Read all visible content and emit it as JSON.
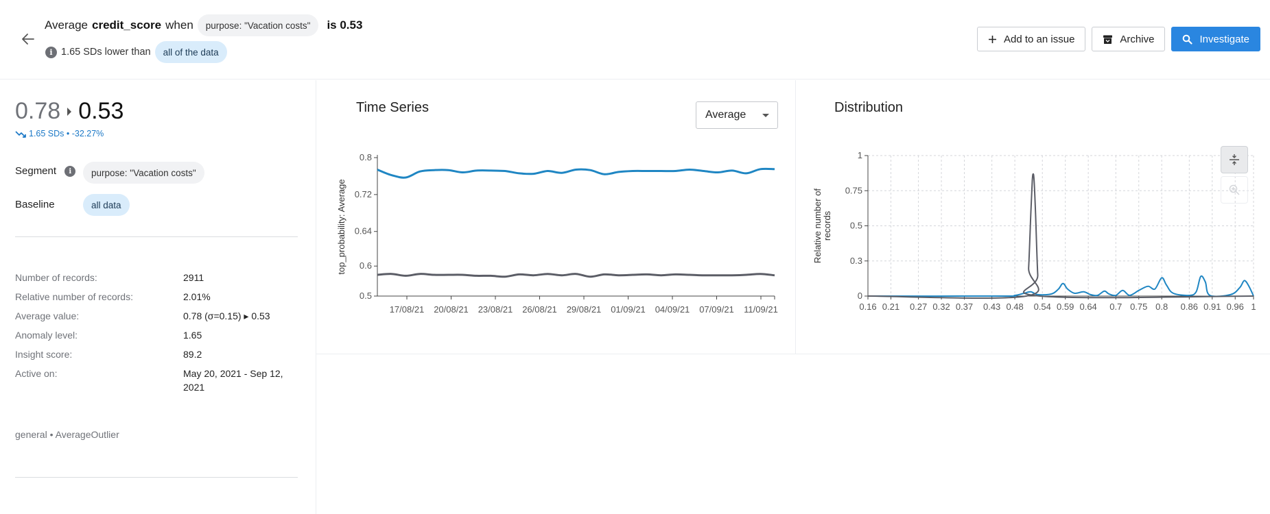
{
  "header": {
    "title_prefix": "Average",
    "metric": "credit_score",
    "title_when": "when",
    "segment_chip": "purpose: \"Vacation costs\"",
    "title_is": "is 0.53",
    "sub_text": "1.65 SDs lower than",
    "baseline_chip": "all of the data"
  },
  "actions": {
    "add_issue_label": "Add to an issue",
    "archive_label": "Archive",
    "investigate_label": "Investigate"
  },
  "summary": {
    "from_value": "0.78",
    "to_value": "0.53",
    "delta_text": "1.65 SDs • -32.27%",
    "segment_label": "Segment",
    "segment_chip": "purpose: \"Vacation costs\"",
    "baseline_label": "Baseline",
    "baseline_chip": "all data"
  },
  "stats": [
    {
      "label": "Number of records:",
      "value": "2911"
    },
    {
      "label": "Relative number of records:",
      "value": "2.01%"
    },
    {
      "label": "Average value:",
      "value": "0.78 (σ=0.15) ▸ 0.53"
    },
    {
      "label": "Anomaly level:",
      "value": "1.65"
    },
    {
      "label": "Insight score:",
      "value": "89.2"
    },
    {
      "label": "Active on:",
      "value": "May 20, 2021 - Sep 12, 2021"
    }
  ],
  "footer_text": "general • AverageOutlier",
  "time_series": {
    "title": "Time Series",
    "aggregation": "Average"
  },
  "distribution": {
    "title": "Distribution"
  },
  "colors": {
    "primary": "#2a86e0",
    "series_baseline": "#1f86c3",
    "series_segment": "#5b5d66"
  },
  "chart_data": [
    {
      "type": "line",
      "title": "Time Series",
      "ylabel": "top_probability: Average",
      "xlabel": "",
      "ylim": [
        0.5,
        0.8
      ],
      "yticks": [
        "0.5",
        "0.6",
        "0.64",
        "0.72",
        "0.8"
      ],
      "ytick_values": [
        0.5,
        0.565,
        0.64,
        0.72,
        0.8
      ],
      "xtick_labels": [
        "17/08/21",
        "20/08/21",
        "23/08/21",
        "26/08/21",
        "29/08/21",
        "01/09/21",
        "04/09/21",
        "07/09/21",
        "11/09/21"
      ],
      "x_count": 29,
      "series": [
        {
          "name": "all data",
          "color": "#1f86c3",
          "values": [
            0.774,
            0.762,
            0.757,
            0.77,
            0.773,
            0.773,
            0.768,
            0.772,
            0.772,
            0.771,
            0.766,
            0.765,
            0.771,
            0.767,
            0.774,
            0.773,
            0.764,
            0.769,
            0.771,
            0.771,
            0.771,
            0.771,
            0.774,
            0.771,
            0.768,
            0.772,
            0.766,
            0.775,
            0.775
          ]
        },
        {
          "name": "purpose: \"Vacation costs\"",
          "color": "#5b5d66",
          "values": [
            0.546,
            0.548,
            0.544,
            0.548,
            0.546,
            0.546,
            0.546,
            0.544,
            0.544,
            0.542,
            0.547,
            0.545,
            0.548,
            0.545,
            0.548,
            0.542,
            0.547,
            0.545,
            0.546,
            0.547,
            0.545,
            0.547,
            0.546,
            0.545,
            0.545,
            0.545,
            0.546,
            0.548,
            0.545
          ]
        }
      ]
    },
    {
      "type": "line",
      "title": "Distribution",
      "ylabel": "Relative number of records",
      "xlabel": "",
      "ylim": [
        0,
        1
      ],
      "yticks": [
        "0",
        "0.3",
        "0.5",
        "0.75",
        "1"
      ],
      "ytick_values": [
        0,
        0.25,
        0.5,
        0.75,
        1
      ],
      "xticks": [
        "0.16",
        "0.21",
        "0.27",
        "0.32",
        "0.37",
        "0.43",
        "0.48",
        "0.54",
        "0.59",
        "0.64",
        "0.7",
        "0.75",
        "0.8",
        "0.86",
        "0.91",
        "0.96",
        "1"
      ],
      "xtick_values": [
        0.16,
        0.21,
        0.27,
        0.32,
        0.37,
        0.43,
        0.48,
        0.54,
        0.59,
        0.64,
        0.7,
        0.75,
        0.8,
        0.86,
        0.91,
        0.96,
        1
      ],
      "xlim": [
        0.16,
        1
      ],
      "series": [
        {
          "name": "all data",
          "color": "#1f86c3",
          "points": [
            [
              0.16,
              0
            ],
            [
              0.45,
              0
            ],
            [
              0.48,
              0.005
            ],
            [
              0.5,
              0.02
            ],
            [
              0.515,
              0.03
            ],
            [
              0.53,
              0.01
            ],
            [
              0.56,
              0.015
            ],
            [
              0.575,
              0.05
            ],
            [
              0.585,
              0.09
            ],
            [
              0.595,
              0.05
            ],
            [
              0.61,
              0.02
            ],
            [
              0.63,
              0.03
            ],
            [
              0.645,
              0.01
            ],
            [
              0.66,
              0.005
            ],
            [
              0.675,
              0.035
            ],
            [
              0.685,
              0.015
            ],
            [
              0.7,
              0.005
            ],
            [
              0.715,
              0.04
            ],
            [
              0.73,
              0.005
            ],
            [
              0.75,
              0.04
            ],
            [
              0.77,
              0.07
            ],
            [
              0.785,
              0.05
            ],
            [
              0.8,
              0.13
            ],
            [
              0.81,
              0.08
            ],
            [
              0.825,
              0.02
            ],
            [
              0.86,
              0.005
            ],
            [
              0.875,
              0.03
            ],
            [
              0.885,
              0.14
            ],
            [
              0.895,
              0.1
            ],
            [
              0.905,
              0.005
            ],
            [
              0.95,
              0.01
            ],
            [
              0.97,
              0.06
            ],
            [
              0.98,
              0.11
            ],
            [
              0.99,
              0.07
            ],
            [
              1,
              0
            ]
          ]
        },
        {
          "name": "purpose: \"Vacation costs\"",
          "color": "#5b5d66",
          "points": [
            [
              0.16,
              0
            ],
            [
              0.505,
              0
            ],
            [
              0.51,
              0.2
            ],
            [
              0.515,
              0.6
            ],
            [
              0.518,
              0.82
            ],
            [
              0.52,
              0.87
            ],
            [
              0.522,
              0.82
            ],
            [
              0.525,
              0.6
            ],
            [
              0.53,
              0.15
            ],
            [
              0.535,
              0
            ],
            [
              1,
              0
            ]
          ]
        }
      ]
    }
  ]
}
